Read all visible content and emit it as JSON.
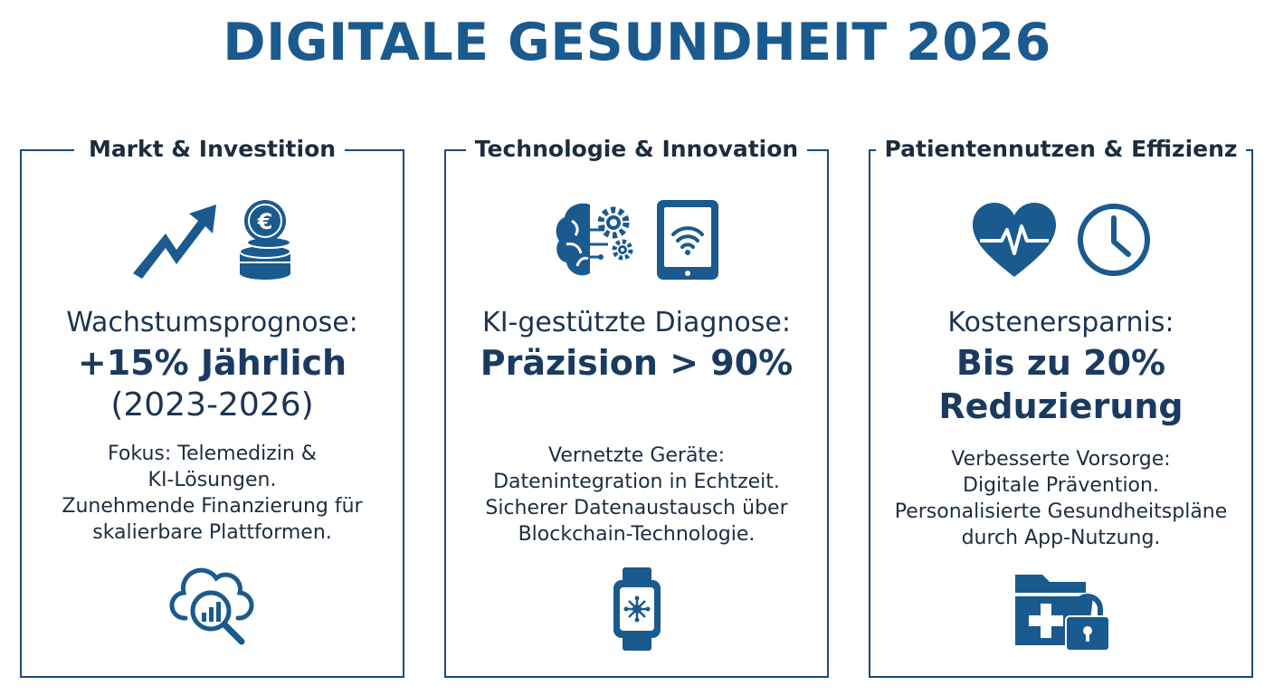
{
  "title": "DIGITALE GESUNDHEIT 2026",
  "colors": {
    "primary": "#1a5a8e",
    "dark": "#1c2d40",
    "border": "#1a4a7a"
  },
  "panels": [
    {
      "heading": "Markt & Investition",
      "icons_top": [
        "trend-up-arrow-icon",
        "euro-coins-icon"
      ],
      "kpi_label": "Wachstumsprognose:",
      "kpi_value": "+15% Jährlich",
      "kpi_sub": "(2023-2026)",
      "desc": [
        "Fokus: Telemedizin &",
        "KI-Lösungen.",
        "Zunehmende Finanzierung für",
        "skalierbare Plattformen."
      ],
      "icon_bottom": "cloud-analytics-icon"
    },
    {
      "heading": "Technologie & Innovation",
      "icons_top": [
        "ai-brain-gears-icon",
        "tablet-wifi-icon"
      ],
      "kpi_label": "KI-gestützte Diagnose:",
      "kpi_value": "Präzision > 90%",
      "desc": [
        "Vernetzte Geräte:",
        "Datenintegration in Echtzeit.",
        "Sicherer Datenaustausch über",
        "Blockchain-Technologie."
      ],
      "icon_bottom": "smartwatch-icon"
    },
    {
      "heading": "Patientennutzen & Effizienz",
      "icons_top": [
        "heart-pulse-icon",
        "clock-icon"
      ],
      "kpi_label": "Kostenersparnis:",
      "kpi_value": "Bis zu 20%",
      "kpi_value2": "Reduzierung",
      "desc": [
        "Verbesserte Vorsorge:",
        "Digitale Prävention.",
        "Personalisierte Gesundheitspläne",
        "durch App-Nutzung."
      ],
      "icon_bottom": "medical-folder-lock-icon"
    }
  ]
}
